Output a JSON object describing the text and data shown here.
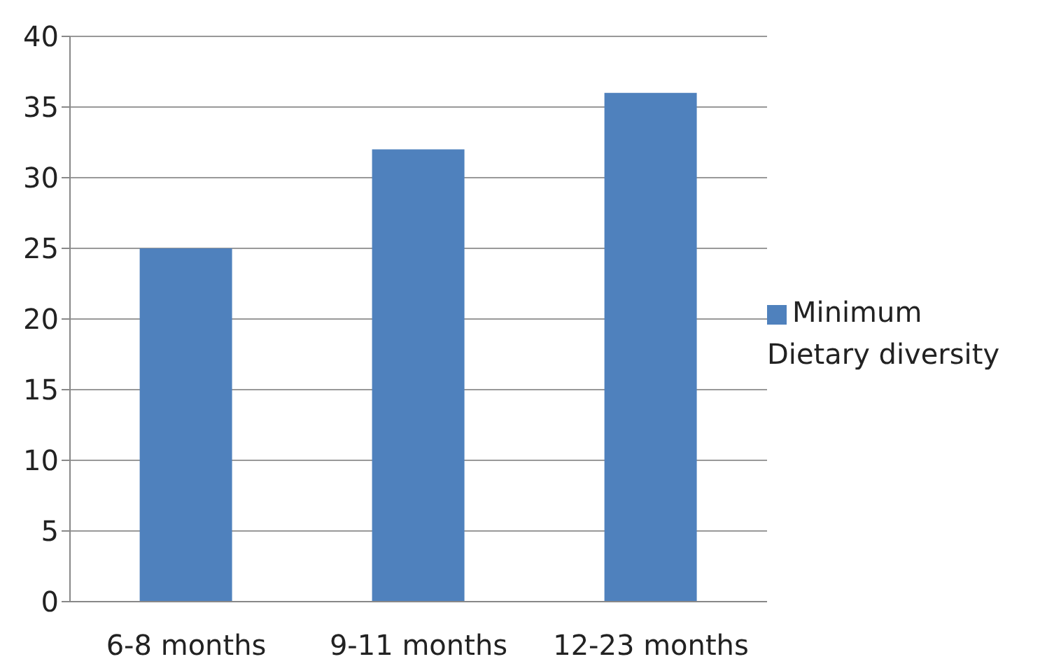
{
  "chart_data": {
    "type": "bar",
    "categories": [
      "6-8 months",
      "9-11 months",
      "12-23 months"
    ],
    "series": [
      {
        "name": "Minimum Dietary diversity",
        "color": "#4f81bd",
        "values": [
          25,
          32,
          36
        ]
      }
    ],
    "ylim": [
      0,
      40
    ],
    "yticks": [
      0,
      5,
      10,
      15,
      20,
      25,
      30,
      35,
      40
    ],
    "grid": "y",
    "legend": "right"
  }
}
